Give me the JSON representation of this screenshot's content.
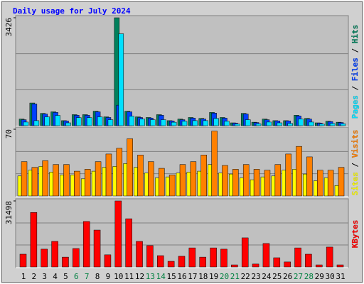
{
  "title": "Daily usage for July 2024",
  "legend_separator": " / ",
  "chart_data": [
    {
      "type": "bar",
      "ylim": [
        0,
        3426
      ],
      "yticks": [
        3426
      ],
      "series": [
        {
          "name": "Hits",
          "color": "#00805c",
          "values": [
            210,
            720,
            390,
            440,
            160,
            350,
            350,
            460,
            280,
            3426,
            460,
            280,
            260,
            350,
            160,
            210,
            260,
            230,
            420,
            260,
            90,
            390,
            110,
            210,
            160,
            160,
            330,
            230,
            90,
            140,
            110
          ]
        },
        {
          "name": "Files",
          "color": "#0040ff",
          "values": [
            190,
            690,
            370,
            420,
            150,
            330,
            330,
            440,
            260,
            650,
            440,
            260,
            240,
            330,
            150,
            190,
            240,
            210,
            400,
            240,
            80,
            370,
            100,
            190,
            150,
            150,
            310,
            210,
            80,
            130,
            100
          ]
        },
        {
          "name": "Pages",
          "color": "#00e0ff",
          "values": [
            115,
            160,
            280,
            325,
            90,
            255,
            255,
            280,
            190,
            2917,
            300,
            210,
            190,
            190,
            110,
            140,
            160,
            160,
            230,
            140,
            50,
            190,
            60,
            115,
            90,
            70,
            210,
            115,
            50,
            70,
            60
          ]
        }
      ]
    },
    {
      "type": "bar",
      "ylim": [
        0,
        70
      ],
      "yticks": [
        70
      ],
      "series": [
        {
          "name": "Visits",
          "color": "#ff8000",
          "values": [
            36,
            30,
            37,
            33,
            33,
            26,
            28,
            36,
            44,
            50,
            60,
            43,
            36,
            29,
            22,
            33,
            36,
            43,
            68,
            32,
            28,
            33,
            28,
            27,
            33,
            44,
            52,
            41,
            27,
            27,
            30
          ]
        },
        {
          "name": "Sites",
          "color": "#ffff00",
          "values": [
            21,
            27,
            31,
            25,
            22,
            22,
            18,
            26,
            30,
            31,
            34,
            30,
            24,
            19,
            20,
            24,
            25,
            26,
            33,
            24,
            23,
            19,
            17,
            20,
            21,
            27,
            28,
            23,
            16,
            19,
            11
          ]
        }
      ]
    },
    {
      "type": "bar",
      "ylim": [
        0,
        31498
      ],
      "yticks": [
        31498
      ],
      "categories": [
        "1",
        "2",
        "3",
        "4",
        "5",
        "6",
        "7",
        "8",
        "9",
        "10",
        "11",
        "12",
        "13",
        "14",
        "15",
        "16",
        "17",
        "18",
        "19",
        "20",
        "21",
        "22",
        "23",
        "24",
        "25",
        "26",
        "27",
        "28",
        "29",
        "30",
        "31"
      ],
      "category_colors": [
        "#000000",
        "#000000",
        "#000000",
        "#000000",
        "#000000",
        "#008040",
        "#008040",
        "#000000",
        "#000000",
        "#000000",
        "#000000",
        "#000000",
        "#008040",
        "#008040",
        "#000000",
        "#000000",
        "#000000",
        "#000000",
        "#000000",
        "#008040",
        "#008040",
        "#000000",
        "#000000",
        "#000000",
        "#000000",
        "#000000",
        "#008040",
        "#008040",
        "#000000",
        "#000000",
        "#000000"
      ],
      "series": [
        {
          "name": "KBytes",
          "color": "#ff0000",
          "values": [
            6100,
            26000,
            8500,
            12200,
            4700,
            8800,
            21700,
            17600,
            5800,
            31498,
            23000,
            12200,
            10200,
            5400,
            2700,
            5100,
            9100,
            4700,
            9100,
            8500,
            1000,
            13900,
            1400,
            11200,
            4400,
            2400,
            9100,
            6100,
            1000,
            9500,
            1000
          ]
        }
      ]
    }
  ]
}
